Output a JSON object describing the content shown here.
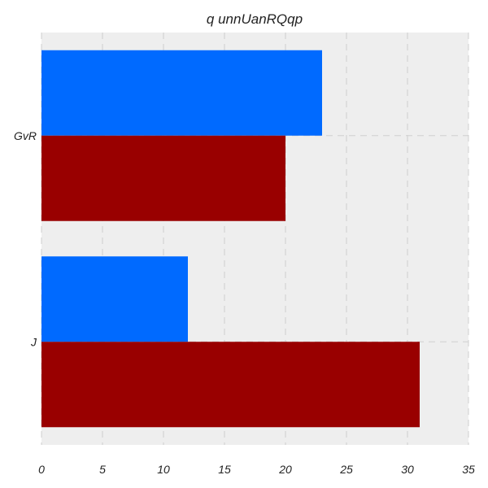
{
  "chart_data": {
    "type": "bar",
    "orientation": "horizontal",
    "title": "q unnUanRQqp",
    "xlabel": "",
    "ylabel": "",
    "categories": [
      "GvR",
      "J"
    ],
    "series": [
      {
        "values": [
          23,
          12
        ],
        "color": "#006aff"
      },
      {
        "values": [
          20,
          31
        ],
        "color": "#990000"
      }
    ],
    "xlim": [
      0,
      35
    ],
    "xticks": [
      0,
      5,
      10,
      15,
      20,
      25,
      30,
      35
    ],
    "grid": true,
    "legend": "none",
    "background": "#eeeeee"
  }
}
